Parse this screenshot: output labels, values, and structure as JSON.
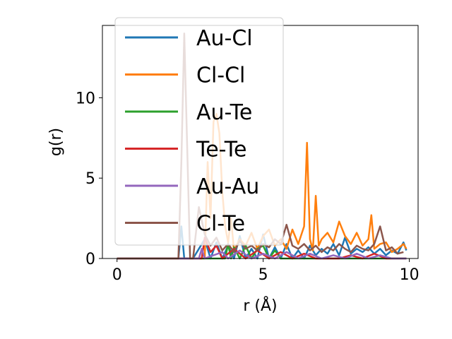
{
  "chart_data": {
    "type": "line",
    "title": "",
    "xlabel": "r (Å)",
    "ylabel": "g(r)",
    "xlim": [
      -0.5,
      10.3
    ],
    "ylim": [
      0,
      14.5
    ],
    "xticks": [
      0,
      5,
      10
    ],
    "yticks": [
      0,
      5,
      10
    ],
    "grid": false,
    "legend_position": "upper-left",
    "series": [
      {
        "name": "Au-Cl",
        "color": "#1f77b4",
        "x": [
          0,
          2.0,
          2.1,
          2.2,
          2.3,
          2.4,
          2.6,
          3.0,
          3.2,
          3.4,
          3.6,
          3.8,
          4.0,
          4.2,
          4.4,
          4.6,
          4.8,
          5.0,
          5.2,
          5.4,
          5.6,
          5.8,
          6.0,
          6.2,
          6.4,
          6.6,
          6.8,
          7.0,
          7.2,
          7.4,
          7.6,
          7.8,
          8.0,
          8.2,
          8.4,
          8.6,
          8.8,
          9.0,
          9.2,
          9.4,
          9.6,
          9.8,
          9.9
        ],
        "y": [
          0,
          0,
          0,
          2.0,
          0,
          0,
          0,
          1.2,
          0,
          1.0,
          0,
          0.8,
          0,
          1.4,
          0,
          0.6,
          0,
          1.5,
          0,
          0.7,
          0,
          0.9,
          0,
          0.5,
          0,
          0.8,
          0.2,
          0.6,
          0.3,
          0.9,
          0.2,
          1.3,
          0.3,
          0.6,
          0.4,
          0.7,
          0.3,
          0.6,
          0.2,
          0.5,
          0.3,
          1.0,
          0.5
        ]
      },
      {
        "name": "Cl-Cl",
        "color": "#ff7f0e",
        "x": [
          0,
          3.0,
          3.1,
          3.2,
          3.3,
          3.4,
          3.5,
          3.6,
          3.7,
          3.8,
          3.9,
          4.0,
          4.2,
          4.4,
          4.6,
          4.8,
          5.0,
          5.2,
          5.4,
          5.6,
          5.8,
          6.0,
          6.2,
          6.4,
          6.5,
          6.6,
          6.7,
          6.8,
          6.9,
          7.0,
          7.2,
          7.4,
          7.6,
          7.8,
          8.0,
          8.2,
          8.4,
          8.6,
          8.7,
          8.8,
          9.0,
          9.2,
          9.4,
          9.6,
          9.8,
          9.9
        ],
        "y": [
          0,
          0,
          6.0,
          2.5,
          8.5,
          9.0,
          7.8,
          4.2,
          2.0,
          1.0,
          2.5,
          0.5,
          1.2,
          0.8,
          1.6,
          0.6,
          1.4,
          1.8,
          0.8,
          1.2,
          0.6,
          1.8,
          0.9,
          2.0,
          7.2,
          1.2,
          0.5,
          3.9,
          0.8,
          1.2,
          1.6,
          1.0,
          2.3,
          1.4,
          0.9,
          1.6,
          0.8,
          1.2,
          2.7,
          0.6,
          0.9,
          1.0,
          0.4,
          0.6,
          0.9,
          0.6
        ]
      },
      {
        "name": "Au-Te",
        "color": "#2ca02c",
        "x": [
          0,
          3.7,
          3.8,
          3.9,
          4.0,
          4.2,
          4.4,
          4.6,
          4.8,
          5.0,
          5.2,
          5.4,
          5.6,
          6.0,
          6.5,
          7.0,
          8.0,
          9.0,
          9.9
        ],
        "y": [
          0,
          0,
          0.9,
          0,
          0.7,
          0,
          0.8,
          0,
          0.6,
          0.8,
          0,
          0.5,
          0,
          0,
          0,
          0,
          0,
          0,
          0
        ]
      },
      {
        "name": "Te-Te",
        "color": "#d62728",
        "x": [
          0,
          2.9,
          3.0,
          3.2,
          3.4,
          3.6,
          4.0,
          4.4,
          4.8,
          5.2,
          5.6,
          6.0,
          6.4,
          6.8,
          7.2,
          7.6,
          8.0,
          8.4,
          8.8,
          9.2,
          9.6,
          9.9
        ],
        "y": [
          0,
          0,
          1.3,
          0.4,
          0.8,
          0,
          0.6,
          0,
          0.5,
          0,
          0.4,
          0,
          0.3,
          0,
          0,
          0,
          0.2,
          0,
          0.3,
          0,
          0,
          0
        ]
      },
      {
        "name": "Au-Au",
        "color": "#9467bd",
        "x": [
          0,
          2.8,
          2.9,
          3.0,
          3.6,
          3.8,
          4.2,
          4.6,
          5.0,
          5.4,
          5.8,
          6.2,
          6.6,
          7.0,
          7.4,
          7.8,
          8.2,
          8.6,
          9.0,
          9.4,
          9.9
        ],
        "y": [
          0,
          0,
          0.6,
          0,
          0.4,
          0,
          0.5,
          0,
          0.3,
          0,
          0.4,
          0,
          0.3,
          0,
          0.2,
          0,
          0.3,
          0,
          0.2,
          0,
          0
        ]
      },
      {
        "name": "Cl-Te",
        "color": "#8c564b",
        "x": [
          0,
          2.0,
          2.1,
          2.2,
          2.3,
          2.4,
          2.5,
          2.6,
          2.8,
          3.0,
          3.2,
          3.4,
          3.6,
          3.8,
          4.0,
          4.2,
          4.4,
          4.6,
          4.8,
          5.0,
          5.2,
          5.4,
          5.6,
          5.8,
          6.0,
          6.2,
          6.4,
          6.6,
          6.8,
          7.0,
          7.2,
          7.4,
          7.6,
          7.8,
          8.0,
          8.2,
          8.4,
          8.6,
          8.8,
          9.0,
          9.2,
          9.4,
          9.6,
          9.8
        ],
        "y": [
          0,
          0,
          0,
          6.0,
          14.0,
          7.0,
          0,
          0,
          3.2,
          1.5,
          0.8,
          1.3,
          0.5,
          0.9,
          0.4,
          1.1,
          0.6,
          0.8,
          0.5,
          0.9,
          0.7,
          1.2,
          0.9,
          2.1,
          0.8,
          0.6,
          0.9,
          0.5,
          0.8,
          0.4,
          0.7,
          0.5,
          0.9,
          0.6,
          0.4,
          0.8,
          0.6,
          0.5,
          0.9,
          2.0,
          0.5,
          0.7,
          0.3,
          0.4
        ]
      }
    ]
  }
}
